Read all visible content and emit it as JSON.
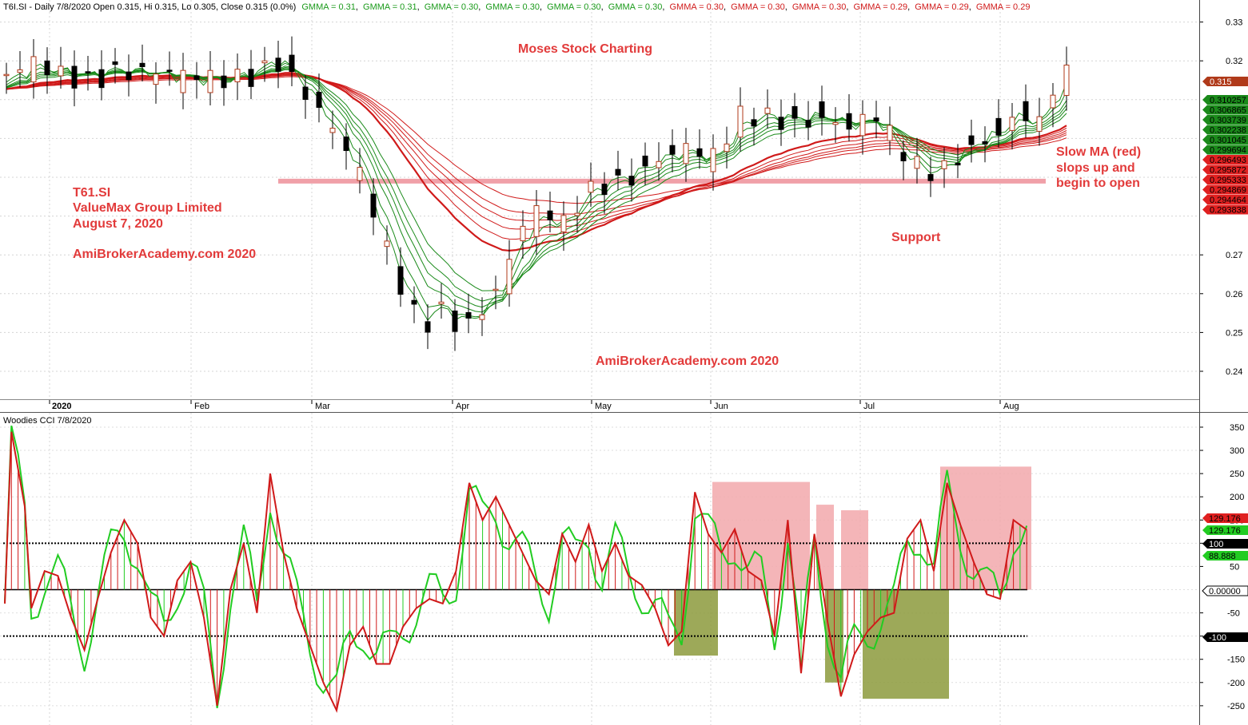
{
  "header": {
    "prefix": "T6I.SI - Daily 7/8/2020 Open 0.315, Hi 0.315, Lo 0.305, Close 0.315 (0.0%)",
    "gmma_items": [
      {
        "text": "GMMA = 0.31",
        "color": "#1a9a1a"
      },
      {
        "text": "GMMA = 0.31",
        "color": "#1a9a1a"
      },
      {
        "text": "GMMA = 0.30",
        "color": "#1a9a1a"
      },
      {
        "text": "GMMA = 0.30",
        "color": "#1a9a1a"
      },
      {
        "text": "GMMA = 0.30",
        "color": "#1a9a1a"
      },
      {
        "text": "GMMA = 0.30",
        "color": "#1a9a1a"
      },
      {
        "text": "GMMA = 0.30",
        "color": "#d01a1a"
      },
      {
        "text": "GMMA = 0.30",
        "color": "#d01a1a"
      },
      {
        "text": "GMMA = 0.30",
        "color": "#d01a1a"
      },
      {
        "text": "GMMA = 0.29",
        "color": "#d01a1a"
      },
      {
        "text": "GMMA = 0.29",
        "color": "#d01a1a"
      },
      {
        "text": "GMMA = 0.29",
        "color": "#d01a1a"
      }
    ]
  },
  "annotations": {
    "title": "Moses Stock Charting",
    "ticker": "T61.SI",
    "company": "ValueMax Group Limited",
    "date": "August 7, 2020",
    "site_left": "AmiBrokerAcademy.com  2020",
    "site_center": "AmiBrokerAcademy.com  2020",
    "slow_ma_1": "Slow MA (red)",
    "slow_ma_2": "slops up and",
    "slow_ma_3": "begin to open",
    "support": "Support"
  },
  "lower_panel": {
    "title": "Woodies CCI  7/8/2020"
  },
  "colors": {
    "green": "#1a8a1a",
    "red": "#d01a1a",
    "cci_green": "#22cc22",
    "support_band": "#f0a0a8",
    "red_zone": "#f2a8ac",
    "green_zone": "#8c9a3c"
  },
  "chart_data": [
    {
      "type": "candlestick",
      "xlabels": [
        "2020",
        "Feb",
        "Mar",
        "Apr",
        "May",
        "Jun",
        "Jul",
        "Aug"
      ],
      "ylim": [
        0.235,
        0.335
      ],
      "yticks": [
        0.33,
        0.32,
        0.27,
        0.26,
        0.25,
        0.24
      ],
      "price_tags": [
        {
          "text": "0.315",
          "color": "#b03a1a"
        },
        {
          "text": "0.310257",
          "color": "#1a8a1a"
        },
        {
          "text": "0.306865",
          "color": "#1a8a1a"
        },
        {
          "text": "0.303739",
          "color": "#1a8a1a"
        },
        {
          "text": "0.302238",
          "color": "#1a8a1a"
        },
        {
          "text": "0.301045",
          "color": "#1a8a1a"
        },
        {
          "text": "0.299694",
          "color": "#1a8a1a"
        },
        {
          "text": "0.296493",
          "color": "#e02020"
        },
        {
          "text": "0.295872",
          "color": "#e02020"
        },
        {
          "text": "0.295333",
          "color": "#e02020"
        },
        {
          "text": "0.294869",
          "color": "#e02020"
        },
        {
          "text": "0.294464",
          "color": "#e02020"
        },
        {
          "text": "0.293838",
          "color": "#e02020"
        }
      ],
      "support_level": 0.289
    },
    {
      "type": "line",
      "title": "Woodies CCI  7/8/2020",
      "ylim": [
        -290,
        370
      ],
      "yticks": [
        350,
        300,
        250,
        200,
        150,
        100,
        50,
        -50,
        -100,
        -150,
        -200,
        -250
      ],
      "reference_lines": [
        100,
        0,
        -100
      ],
      "value_tags": [
        {
          "text": "129.176",
          "bg": "#e02020",
          "fg": "#000000",
          "y": 129.176
        },
        {
          "text": "129.176",
          "bg": "#22cc22",
          "fg": "#000000",
          "y": 129.176
        },
        {
          "text": "100",
          "bg": "#000000",
          "fg": "#ffffff",
          "y": 100
        },
        {
          "text": "88.888",
          "bg": "#22cc22",
          "fg": "#000000",
          "y": 88.888
        },
        {
          "text": "0.00000",
          "bg": "#ffffff",
          "fg": "#000000",
          "y": 0
        },
        {
          "text": "-100",
          "bg": "#000000",
          "fg": "#ffffff",
          "y": -100
        }
      ]
    }
  ]
}
